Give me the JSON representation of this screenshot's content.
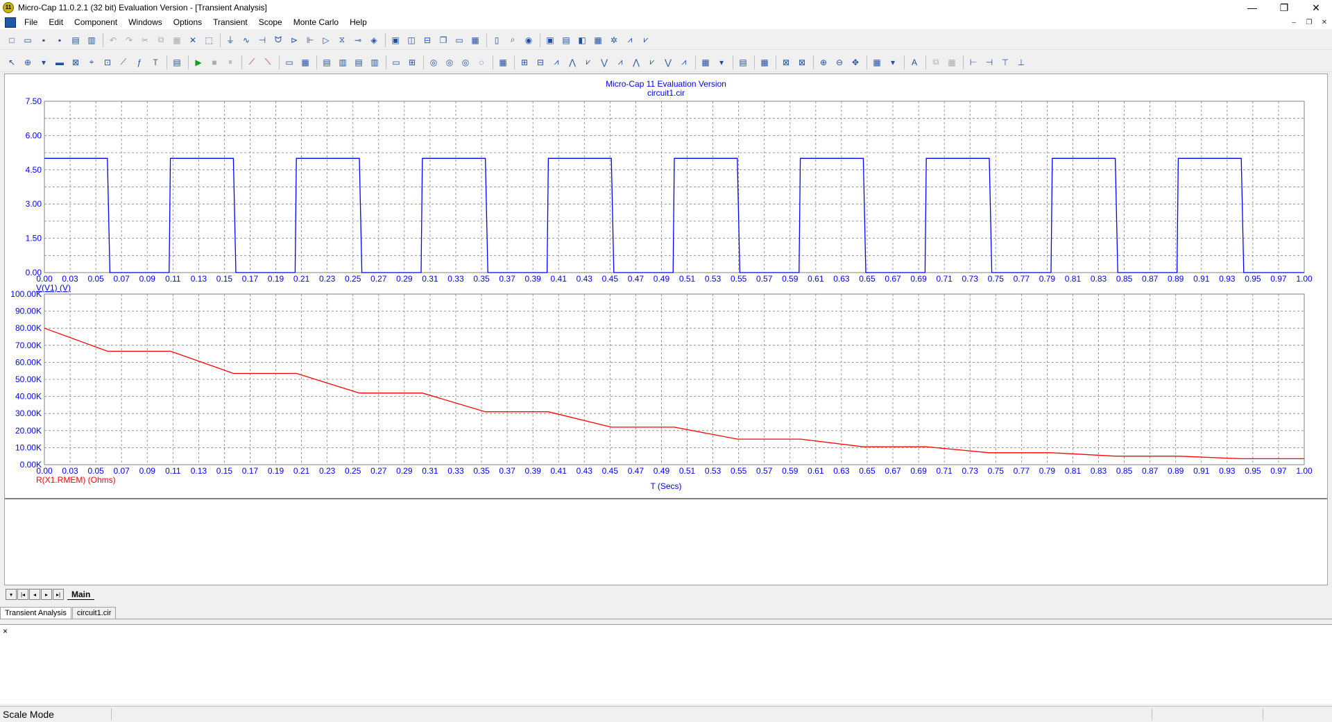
{
  "window": {
    "title": "Micro-Cap 11.0.2.1 (32 bit) Evaluation Version - [Transient Analysis]",
    "app_icon_label": "11"
  },
  "menu": [
    {
      "label": "File"
    },
    {
      "label": "Edit"
    },
    {
      "label": "Component"
    },
    {
      "label": "Windows"
    },
    {
      "label": "Options"
    },
    {
      "label": "Transient"
    },
    {
      "label": "Scope"
    },
    {
      "label": "Monte Carlo"
    },
    {
      "label": "Help"
    }
  ],
  "toolbar1_icons": [
    "new-icon",
    "open-icon",
    "save-icon",
    "save-all-icon",
    "print-preview-icon",
    "print-icon",
    "|",
    "undo-icon",
    "redo-icon",
    "cut-icon",
    "copy-icon",
    "paste-icon",
    "delete-icon",
    "select-all-icon",
    "|",
    "ground-icon",
    "resistor-icon",
    "capacitor-icon",
    "inductor-icon",
    "diode-icon",
    "battery-icon",
    "opamp-icon",
    "transformer-icon",
    "junction-icon",
    "node-icon",
    "|",
    "window-icon",
    "tile-v-icon",
    "tile-h-icon",
    "cascade-icon",
    "restore-icon",
    "calc-icon",
    "|",
    "page-icon",
    "find-icon",
    "globe-icon",
    "|",
    "analysis-icon",
    "limits-icon",
    "view-icon",
    "properties-icon",
    "tools-icon",
    "plot-icon",
    "plot2-icon"
  ],
  "toolbar2_icons": [
    "select-icon",
    "scale-icon",
    "dropdown-icon",
    "graphics-icon",
    "zoom-box-icon",
    "cursor-icon",
    "point-icon",
    "slope-icon",
    "expression-icon",
    "text-icon",
    "|",
    "stepping-icon",
    "|",
    "run-icon",
    "stop-icon",
    "pause-icon",
    "|",
    "peak-icon",
    "valley-icon",
    "|",
    "box-icon",
    "grid-icon",
    "|",
    "rect-icon",
    "rect2-icon",
    "rect3-icon",
    "rect4-icon",
    "|",
    "label-icon",
    "label2-icon",
    "|",
    "zoom-icon",
    "zoom2-icon",
    "zoom3-icon",
    "zoom4-icon",
    "|",
    "tag-icon",
    "|",
    "wave1-icon",
    "wave2-icon",
    "wave3-icon",
    "wave4-icon",
    "wave5-icon",
    "wave6-icon",
    "wave7-icon",
    "wave8-icon",
    "wave9-icon",
    "wave10-icon",
    "wave11-icon",
    "|",
    "color-icon",
    "dropdown-icon",
    "|",
    "list-icon",
    "|",
    "info-icon",
    "|",
    "fit-icon",
    "fit2-icon",
    "|",
    "zoom-in-icon",
    "zoom-out-icon",
    "pan-icon",
    "|",
    "grid-icon",
    "dropdown-icon",
    "|",
    "font-icon",
    "|",
    "copy-icon",
    "paste-icon",
    "|",
    "align-left-icon",
    "align-right-icon",
    "align-top-icon",
    "align-bottom-icon"
  ],
  "plot": {
    "title": "Micro-Cap 11 Evaluation Version",
    "subtitle": "circuit1.cir",
    "x_axis_label": "T (Secs)"
  },
  "chart_data": [
    {
      "type": "line",
      "series": [
        {
          "name": "V(V1) (V)",
          "color": "#0000ff"
        }
      ],
      "ylabel": "V(V1) (V)",
      "xlim": [
        0,
        1
      ],
      "ylim": [
        0,
        7.5
      ],
      "x_ticks": [
        "0.00",
        "0.03",
        "0.05",
        "0.07",
        "0.09",
        "0.11",
        "0.13",
        "0.15",
        "0.17",
        "0.19",
        "0.21",
        "0.23",
        "0.25",
        "0.27",
        "0.29",
        "0.31",
        "0.33",
        "0.35",
        "0.37",
        "0.39",
        "0.41",
        "0.43",
        "0.45",
        "0.47",
        "0.49",
        "0.51",
        "0.53",
        "0.55",
        "0.57",
        "0.59",
        "0.61",
        "0.63",
        "0.65",
        "0.67",
        "0.69",
        "0.71",
        "0.73",
        "0.75",
        "0.77",
        "0.79",
        "0.81",
        "0.83",
        "0.85",
        "0.87",
        "0.89",
        "0.91",
        "0.93",
        "0.95",
        "0.97",
        "1.00"
      ],
      "y_ticks": [
        "0.00",
        "1.50",
        "3.00",
        "4.50",
        "6.00",
        "7.50"
      ],
      "y_tick_values": [
        0,
        1.5,
        3,
        4.5,
        6,
        7.5
      ],
      "pulse": {
        "high": 5,
        "low": 0,
        "period": 0.1,
        "high_end": 0.05,
        "rise": 0.001,
        "fall": 0.002
      },
      "grid": true
    },
    {
      "type": "line",
      "series": [
        {
          "name": "R(X1.RMEM) (Ohms)",
          "color": "#ff0000"
        }
      ],
      "ylabel": "R(X1.RMEM) (Ohms)",
      "xlabel": "T (Secs)",
      "xlim": [
        0,
        1
      ],
      "ylim": [
        0,
        100000
      ],
      "x_ticks": [
        "0.00",
        "0.03",
        "0.05",
        "0.07",
        "0.09",
        "0.11",
        "0.13",
        "0.15",
        "0.17",
        "0.19",
        "0.21",
        "0.23",
        "0.25",
        "0.27",
        "0.29",
        "0.31",
        "0.33",
        "0.35",
        "0.37",
        "0.39",
        "0.41",
        "0.43",
        "0.45",
        "0.47",
        "0.49",
        "0.51",
        "0.53",
        "0.55",
        "0.57",
        "0.59",
        "0.61",
        "0.63",
        "0.65",
        "0.67",
        "0.69",
        "0.71",
        "0.73",
        "0.75",
        "0.77",
        "0.79",
        "0.81",
        "0.83",
        "0.85",
        "0.87",
        "0.89",
        "0.91",
        "0.93",
        "0.95",
        "0.97",
        "1.00"
      ],
      "y_ticks": [
        "0.00K",
        "10.00K",
        "20.00K",
        "30.00K",
        "40.00K",
        "50.00K",
        "60.00K",
        "70.00K",
        "80.00K",
        "90.00K",
        "100.00K"
      ],
      "y_tick_values": [
        0,
        10000,
        20000,
        30000,
        40000,
        50000,
        60000,
        70000,
        80000,
        90000,
        100000
      ],
      "x": [
        0,
        0.05,
        0.1,
        0.15,
        0.2,
        0.25,
        0.3,
        0.35,
        0.4,
        0.45,
        0.5,
        0.55,
        0.6,
        0.65,
        0.7,
        0.75,
        0.8,
        0.85,
        0.9,
        0.95,
        1.0
      ],
      "values": [
        80000,
        66500,
        66500,
        53500,
        53500,
        42000,
        42000,
        31000,
        31000,
        22000,
        22000,
        15000,
        15000,
        10500,
        10500,
        7000,
        7000,
        5000,
        5000,
        3500,
        3500
      ],
      "grid": true
    }
  ],
  "page_tabs": {
    "main": "Main"
  },
  "doc_tabs": [
    {
      "label": "Transient Analysis"
    },
    {
      "label": "circuit1.cir"
    }
  ],
  "output_close": "×",
  "status": {
    "text": "Scale Mode"
  }
}
